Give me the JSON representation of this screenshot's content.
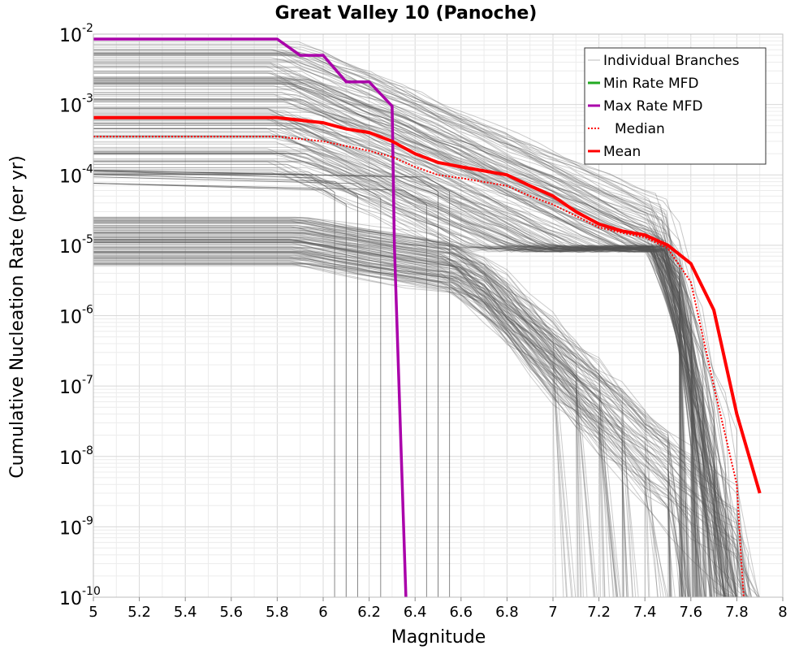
{
  "chart_data": {
    "type": "line",
    "title": "Great Valley 10 (Panoche)",
    "xlabel": "Magnitude",
    "ylabel": "Cumulative Nucleation Rate (per yr)",
    "xlim": [
      5,
      8
    ],
    "ylim": [
      1e-10,
      0.01
    ],
    "yscale": "log",
    "grid": true,
    "legend_position": "top-right",
    "x_ticks": [
      "5",
      "5.2",
      "5.4",
      "5.6",
      "5.8",
      "6",
      "6.2",
      "6.4",
      "6.6",
      "6.8",
      "7",
      "7.2",
      "7.4",
      "7.6",
      "7.8",
      "8"
    ],
    "y_tick_base": "10",
    "y_tick_exponents": [
      "-2",
      "-3",
      "-4",
      "-5",
      "-6",
      "-7",
      "-8",
      "-9",
      "-10"
    ],
    "legend": [
      {
        "label": "Individual Branches",
        "color": "#bbbbbb",
        "style": "solid"
      },
      {
        "label": "Min Rate MFD",
        "color": "#22aa22",
        "style": "solid"
      },
      {
        "label": "Max Rate MFD",
        "color": "#aa00aa",
        "style": "solid"
      },
      {
        "label": "Median",
        "color": "#ff0000",
        "style": "dotted"
      },
      {
        "label": "Mean",
        "color": "#ff0000",
        "style": "solid"
      }
    ],
    "series": [
      {
        "name": "Max Rate MFD",
        "color": "#aa00aa",
        "x": [
          5.0,
          5.8,
          5.9,
          6.0,
          6.1,
          6.2,
          6.3,
          6.31,
          6.36
        ],
        "y": [
          0.0085,
          0.0085,
          0.005,
          0.005,
          0.0021,
          0.0021,
          0.00095,
          1e-05,
          1e-10
        ]
      },
      {
        "name": "Median",
        "color": "#ff0000",
        "x": [
          5.0,
          5.8,
          6.0,
          6.2,
          6.3,
          6.4,
          6.5,
          6.6,
          6.8,
          6.9,
          7.0,
          7.1,
          7.2,
          7.3,
          7.4,
          7.5,
          7.6,
          7.7,
          7.8,
          7.82,
          7.83
        ],
        "y": [
          0.00035,
          0.00035,
          0.0003,
          0.00022,
          0.00018,
          0.00013,
          0.0001,
          9e-05,
          7e-05,
          5e-05,
          3.8e-05,
          2.6e-05,
          1.8e-05,
          1.5e-05,
          1.3e-05,
          9e-06,
          3e-06,
          1e-07,
          4e-09,
          3e-10,
          1e-10
        ]
      },
      {
        "name": "Mean",
        "color": "#ff0000",
        "x": [
          5.0,
          5.8,
          6.0,
          6.1,
          6.2,
          6.3,
          6.4,
          6.5,
          6.6,
          6.8,
          6.9,
          7.0,
          7.1,
          7.2,
          7.3,
          7.4,
          7.5,
          7.6,
          7.7,
          7.8,
          7.9
        ],
        "y": [
          0.00065,
          0.00065,
          0.00055,
          0.00045,
          0.0004,
          0.0003,
          0.0002,
          0.00015,
          0.00013,
          0.0001,
          7e-05,
          5e-05,
          3e-05,
          2e-05,
          1.6e-05,
          1.4e-05,
          1e-05,
          5.5e-06,
          1.2e-06,
          4e-08,
          3e-09
        ]
      }
    ]
  }
}
